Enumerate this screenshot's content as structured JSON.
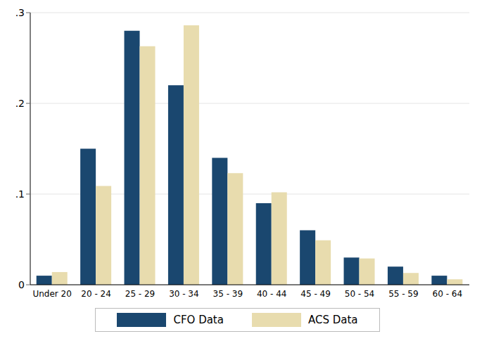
{
  "chart_data": {
    "type": "bar",
    "categories": [
      "Under 20",
      "20 - 24",
      "25 - 29",
      "30 - 34",
      "35 - 39",
      "40 - 44",
      "45 - 49",
      "50 - 54",
      "55 - 59",
      "60 - 64"
    ],
    "series": [
      {
        "name": "CFO Data",
        "color": "#1a476f",
        "values": [
          0.01,
          0.15,
          0.28,
          0.22,
          0.14,
          0.09,
          0.06,
          0.03,
          0.02,
          0.01
        ]
      },
      {
        "name": "ACS Data",
        "color": "#e8dcae",
        "values": [
          0.014,
          0.109,
          0.263,
          0.286,
          0.123,
          0.102,
          0.049,
          0.029,
          0.013,
          0.006
        ]
      }
    ],
    "ylim": [
      0,
      0.3
    ],
    "yticks": [
      0,
      {
        "value": 0.1,
        "label": ".1"
      },
      {
        "value": 0.2,
        "label": ".2"
      },
      {
        "value": 0.3,
        "label": ".3"
      }
    ],
    "grid": true,
    "legend": "bottom"
  }
}
